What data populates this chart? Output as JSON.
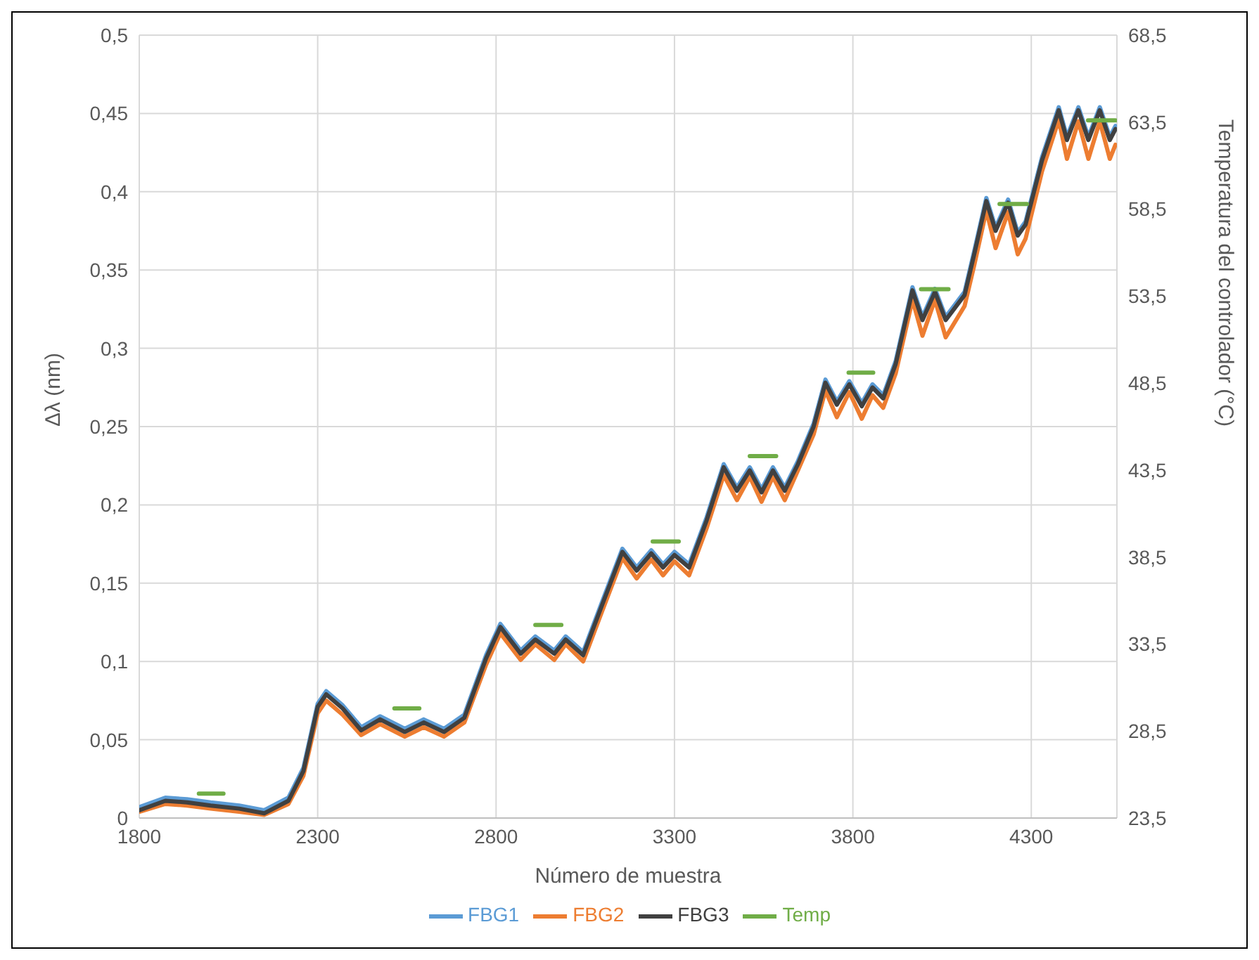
{
  "chart_data": {
    "type": "line",
    "xlabel": "Número de muestra",
    "ylabel": "Δλ (nm)",
    "y2label": "Temperatura del controlador (°C)",
    "xlim": [
      1800,
      4540
    ],
    "xticks": [
      1800,
      2300,
      2800,
      3300,
      3800,
      4300
    ],
    "ylim": [
      0,
      0.5
    ],
    "yticks": [
      0,
      {
        "value": 0.05,
        "label": "0,05"
      },
      {
        "value": 0.1,
        "label": "0,1"
      },
      {
        "value": 0.15,
        "label": "0,15"
      },
      {
        "value": 0.2,
        "label": "0,2"
      },
      {
        "value": 0.25,
        "label": "0,25"
      },
      {
        "value": 0.3,
        "label": "0,3"
      },
      {
        "value": 0.35,
        "label": "0,35"
      },
      {
        "value": 0.4,
        "label": "0,4"
      },
      {
        "value": 0.45,
        "label": "0,45"
      },
      {
        "value": 0.5,
        "label": "0,5"
      }
    ],
    "y2lim": [
      23.5,
      68.5
    ],
    "y2ticks": [
      {
        "value": 23.5,
        "label": "23,5"
      },
      {
        "value": 28.5,
        "label": "28,5"
      },
      {
        "value": 33.5,
        "label": "33,5"
      },
      {
        "value": 38.5,
        "label": "38,5"
      },
      {
        "value": 43.5,
        "label": "43,5"
      },
      {
        "value": 48.5,
        "label": "48,5"
      },
      {
        "value": 53.5,
        "label": "53,5"
      },
      {
        "value": 58.5,
        "label": "58,5"
      },
      {
        "value": 63.5,
        "label": "63,5"
      },
      {
        "value": 68.5,
        "label": "68,5"
      }
    ],
    "grid": true,
    "legend": "bottom",
    "marker": "none",
    "line_style": "solid",
    "x": [
      1800,
      1873,
      1934,
      2000,
      2080,
      2150,
      2218,
      2260,
      2300,
      2324,
      2370,
      2422,
      2475,
      2544,
      2597,
      2654,
      2711,
      2772,
      2812,
      2869,
      2910,
      2963,
      2995,
      3044,
      3097,
      3154,
      3194,
      3235,
      3268,
      3300,
      3341,
      3390,
      3438,
      3475,
      3511,
      3544,
      3576,
      3609,
      3646,
      3690,
      3723,
      3755,
      3790,
      3825,
      3855,
      3885,
      3920,
      3967,
      3995,
      4030,
      4060,
      4113,
      4140,
      4174,
      4200,
      4235,
      4262,
      4284,
      4330,
      4377,
      4400,
      4432,
      4460,
      4492,
      4520,
      4536
    ],
    "series": [
      {
        "name": "FBG1",
        "color": "#5b9bd5",
        "values": [
          0.007,
          0.013,
          0.012,
          0.01,
          0.008,
          0.005,
          0.013,
          0.032,
          0.073,
          0.081,
          0.072,
          0.058,
          0.065,
          0.057,
          0.063,
          0.057,
          0.066,
          0.104,
          0.124,
          0.107,
          0.116,
          0.107,
          0.116,
          0.106,
          0.138,
          0.172,
          0.16,
          0.171,
          0.162,
          0.17,
          0.162,
          0.192,
          0.226,
          0.211,
          0.224,
          0.21,
          0.224,
          0.211,
          0.228,
          0.252,
          0.28,
          0.266,
          0.279,
          0.265,
          0.277,
          0.27,
          0.292,
          0.339,
          0.32,
          0.338,
          0.32,
          0.336,
          0.362,
          0.396,
          0.377,
          0.395,
          0.374,
          0.381,
          0.422,
          0.454,
          0.435,
          0.454,
          0.435,
          0.454,
          0.435,
          0.442
        ]
      },
      {
        "name": "FBG2",
        "color": "#ed7d31",
        "values": [
          0.004,
          0.009,
          0.008,
          0.006,
          0.004,
          0.002,
          0.009,
          0.027,
          0.067,
          0.075,
          0.066,
          0.053,
          0.06,
          0.052,
          0.058,
          0.052,
          0.061,
          0.098,
          0.118,
          0.101,
          0.111,
          0.101,
          0.111,
          0.1,
          0.132,
          0.166,
          0.153,
          0.165,
          0.155,
          0.164,
          0.155,
          0.185,
          0.219,
          0.203,
          0.218,
          0.202,
          0.218,
          0.203,
          0.222,
          0.245,
          0.273,
          0.256,
          0.272,
          0.255,
          0.27,
          0.262,
          0.284,
          0.331,
          0.308,
          0.331,
          0.307,
          0.327,
          0.353,
          0.388,
          0.364,
          0.387,
          0.36,
          0.37,
          0.413,
          0.446,
          0.421,
          0.445,
          0.421,
          0.445,
          0.421,
          0.43
        ]
      },
      {
        "name": "FBG3",
        "color": "#404040",
        "values": [
          0.005,
          0.011,
          0.01,
          0.008,
          0.006,
          0.003,
          0.011,
          0.03,
          0.071,
          0.079,
          0.07,
          0.056,
          0.063,
          0.055,
          0.061,
          0.055,
          0.064,
          0.102,
          0.122,
          0.105,
          0.114,
          0.105,
          0.114,
          0.104,
          0.136,
          0.17,
          0.158,
          0.169,
          0.16,
          0.168,
          0.16,
          0.19,
          0.224,
          0.209,
          0.222,
          0.208,
          0.222,
          0.209,
          0.226,
          0.25,
          0.278,
          0.264,
          0.277,
          0.263,
          0.275,
          0.268,
          0.29,
          0.337,
          0.318,
          0.336,
          0.318,
          0.334,
          0.36,
          0.394,
          0.375,
          0.393,
          0.372,
          0.379,
          0.42,
          0.452,
          0.433,
          0.452,
          0.433,
          0.452,
          0.433,
          0.44
        ]
      },
      {
        "name": "Temp",
        "color": "#70ad47",
        "axis": "y2",
        "x": [
          1967,
          2036,
          2100,
          2515,
          2585,
          2700,
          2910,
          2983,
          3100,
          3239,
          3312,
          3400,
          3511,
          3585,
          3650,
          3788,
          3857,
          3900,
          3991,
          4068,
          4100,
          4211,
          4288,
          4330,
          4459,
          4536
        ],
        "values": [
          24.9,
          24.9,
          null,
          29.8,
          29.8,
          null,
          34.6,
          34.6,
          null,
          39.4,
          39.4,
          null,
          44.3,
          44.3,
          null,
          49.1,
          49.1,
          null,
          53.9,
          53.9,
          null,
          58.8,
          58.8,
          null,
          63.6,
          63.6
        ]
      }
    ]
  }
}
